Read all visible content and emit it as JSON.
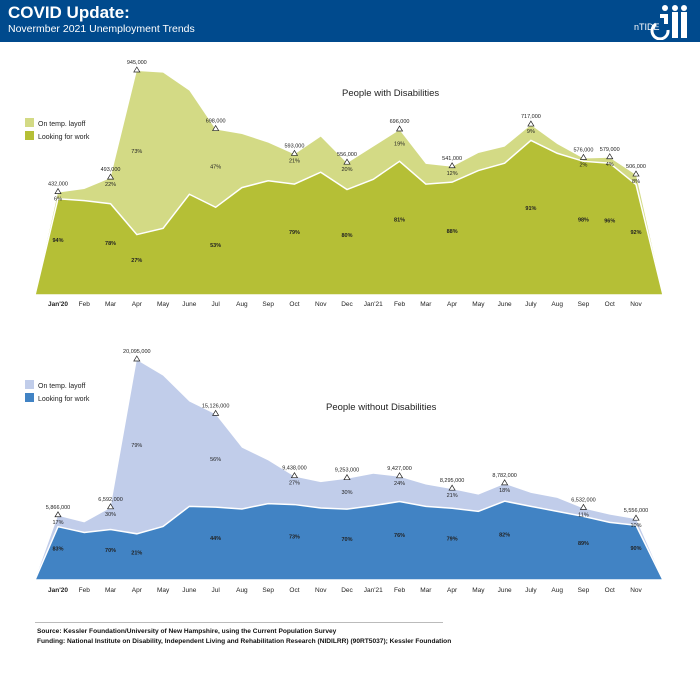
{
  "header": {
    "title": "COVID Update:",
    "subtitle": "Novermber 2021 Unemployment Trends",
    "logo_text": "nTIDE"
  },
  "footer": {
    "source": "Source: Kessler Foundation/University of New Hampshire, using the Current Population Survey",
    "funding": "Funding: National Institute on Disability, Independent Living and Rehabilitation Research (NIDILRR) (90RT5037); Kessler Foundation"
  },
  "colors": {
    "header_bg": "#004a8d",
    "pwd_layoff": "#d3da85",
    "pwd_looking": "#b5bf36",
    "pwod_layoff": "#c1cdea",
    "pwod_looking": "#4183c4"
  },
  "chart_data": [
    {
      "type": "area",
      "stacked": true,
      "title": "People with Disabilities",
      "legend": [
        "On temp. layoff",
        "Looking for work"
      ],
      "legend_placement": "top-left",
      "categories": [
        "Jan'20",
        "Feb",
        "Mar",
        "Apr",
        "May",
        "June",
        "Jul",
        "Aug",
        "Sep",
        "Oct",
        "Nov",
        "Dec",
        "Jan'21",
        "Feb",
        "Mar",
        "Apr",
        "May",
        "June",
        "July",
        "Aug",
        "Sep",
        "Oct",
        "Nov"
      ],
      "ylim": [
        0,
        945000
      ],
      "grid": false,
      "series": [
        {
          "name": "Looking for work",
          "values": [
            406000,
            398000,
            385000,
            255000,
            281000,
            425000,
            370000,
            453000,
            482000,
            468000,
            518000,
            445000,
            488000,
            564000,
            468000,
            476000,
            525000,
            556000,
            652000,
            598000,
            564000,
            556000,
            466000
          ]
        },
        {
          "name": "On temp. layoff",
          "values": [
            26000,
            49000,
            108000,
            690000,
            657000,
            437000,
            328000,
            226000,
            161000,
            125000,
            150000,
            111000,
            138000,
            132000,
            85000,
            65000,
            74000,
            70000,
            65000,
            39000,
            12000,
            23000,
            40000
          ]
        }
      ],
      "total_labels": [
        "432,000",
        null,
        "493,000",
        "945,000",
        null,
        null,
        "698,000",
        null,
        null,
        "593,000",
        null,
        "556,000",
        null,
        "696,000",
        null,
        "541,000",
        null,
        null,
        "717,000",
        null,
        "576,000",
        "579,000",
        "506,000"
      ],
      "layoff_pct_labels": [
        "6%",
        null,
        "22%",
        "73%",
        null,
        null,
        "47%",
        null,
        null,
        "21%",
        null,
        "20%",
        null,
        "19%",
        null,
        "12%",
        null,
        null,
        "9%",
        null,
        "2%",
        "4%",
        "8%"
      ],
      "looking_pct_labels": [
        "94%",
        null,
        "78%",
        "27%",
        null,
        null,
        "53%",
        null,
        null,
        "79%",
        null,
        "80%",
        null,
        "81%",
        null,
        "88%",
        null,
        null,
        "91%",
        null,
        "98%",
        "96%",
        "92%"
      ]
    },
    {
      "type": "area",
      "stacked": true,
      "title": "People without Disabilities",
      "legend": [
        "On temp. layoff",
        "Looking for work"
      ],
      "legend_placement": "top-left",
      "categories": [
        "Jan'20",
        "Feb",
        "Mar",
        "Apr",
        "May",
        "June",
        "Jul",
        "Aug",
        "Sep",
        "Oct",
        "Nov",
        "Dec",
        "Jan'21",
        "Feb",
        "Mar",
        "Apr",
        "May",
        "June",
        "July",
        "Aug",
        "Sep",
        "Oct",
        "Nov"
      ],
      "ylim": [
        0,
        20095000
      ],
      "grid": false,
      "series": [
        {
          "name": "Looking for work",
          "values": [
            4869000,
            4342000,
            4614000,
            4220000,
            4893000,
            6729000,
            6655000,
            6490000,
            6977000,
            6890000,
            6582000,
            6477000,
            6793000,
            7165000,
            6729000,
            6553000,
            6270000,
            7201000,
            6729000,
            6270000,
            5813000,
            5260000,
            5000000
          ]
        },
        {
          "name": "On temp. layoff",
          "values": [
            997000,
            920000,
            1978000,
            15875000,
            13772000,
            9581000,
            8471000,
            5600000,
            3948000,
            2548000,
            2353000,
            2776000,
            2907000,
            2262000,
            1991000,
            1742000,
            1530000,
            1581000,
            1226000,
            1230000,
            719000,
            707000,
            556000
          ]
        }
      ],
      "total_labels": [
        "5,866,000",
        null,
        "6,592,000",
        "20,095,000",
        null,
        null,
        "15,126,000",
        null,
        null,
        "9,438,000",
        null,
        "9,253,000",
        null,
        "9,427,000",
        null,
        "8,295,000",
        null,
        "8,782,000",
        null,
        null,
        "6,532,000",
        null,
        "5,556,000"
      ],
      "layoff_pct_labels": [
        "17%",
        null,
        "30%",
        "79%",
        null,
        null,
        "56%",
        null,
        null,
        "27%",
        null,
        "30%",
        null,
        "24%",
        null,
        "21%",
        null,
        "18%",
        null,
        null,
        "11%",
        null,
        "10%"
      ],
      "looking_pct_labels": [
        "83%",
        null,
        "70%",
        "21%",
        null,
        null,
        "44%",
        null,
        null,
        "73%",
        null,
        "70%",
        null,
        "76%",
        null,
        "79%",
        null,
        "82%",
        null,
        null,
        "89%",
        null,
        "90%"
      ]
    }
  ]
}
